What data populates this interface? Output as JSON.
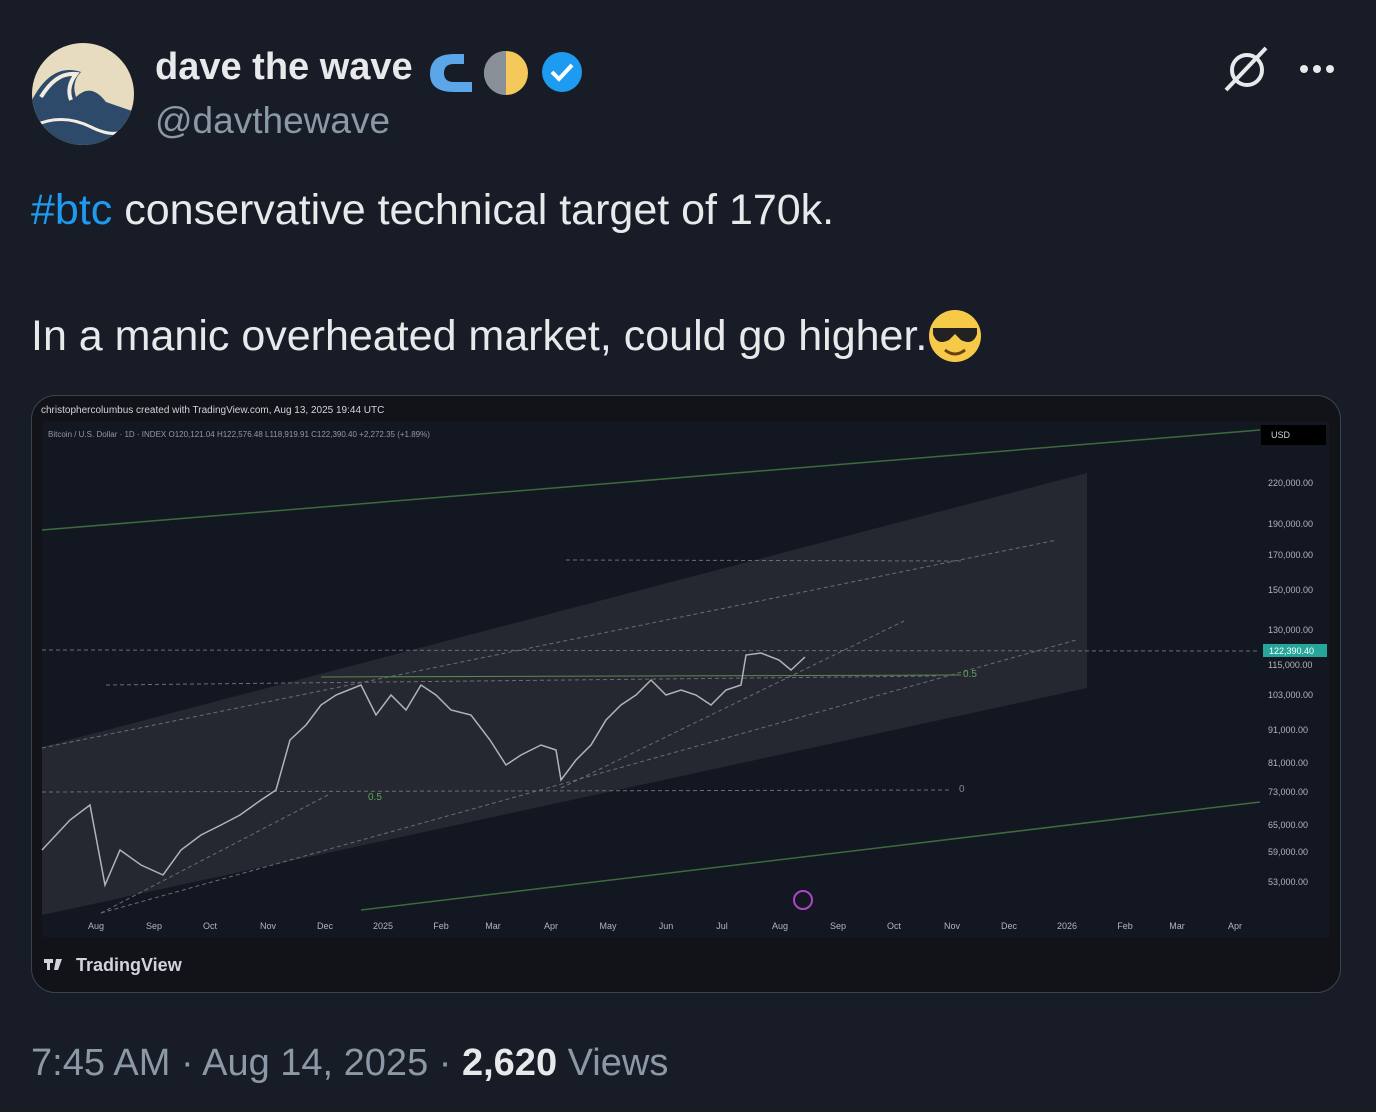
{
  "author": {
    "name": "dave the wave",
    "handle": "@davthewave"
  },
  "tweet": {
    "hashtag": "#btc",
    "line1": "conservative technical target of 170k.",
    "line2": "In a manic overheated market, could go higher."
  },
  "image": {
    "credit": "christophercolumbus created with TradingView.com, Aug 13, 2025 19:44 UTC",
    "symbol": "Bitcoin / U.S. Dollar · 1D · INDEX  O120,121.04  H122,576.48  L118,919.91  C122,390.40  +2,272.35 (+1.89%)",
    "currency": "USD",
    "price_labels": [
      "220,000.00",
      "190,000.00",
      "170,000.00",
      "150,000.00",
      "130,000.00",
      "115,000.00",
      "103,000.00",
      "91,000.00",
      "81,000.00",
      "73,000.00",
      "65,000.00",
      "59,000.00",
      "53,000.00"
    ],
    "last_price": "122,390.40",
    "time_labels": [
      "Aug",
      "Sep",
      "Oct",
      "Nov",
      "Dec",
      "2025",
      "Feb",
      "Mar",
      "Apr",
      "May",
      "Jun",
      "Jul",
      "Aug",
      "Sep",
      "Oct",
      "Nov",
      "Dec",
      "2026",
      "Feb",
      "Mar",
      "Apr"
    ],
    "fib_labels": [
      "0.5",
      "0.5",
      "0"
    ],
    "brand": "TradingView"
  },
  "footer": {
    "time": "7:45 AM",
    "separator": "·",
    "date": "Aug 14, 2025",
    "views": "2,620",
    "views_label": "Views"
  }
}
